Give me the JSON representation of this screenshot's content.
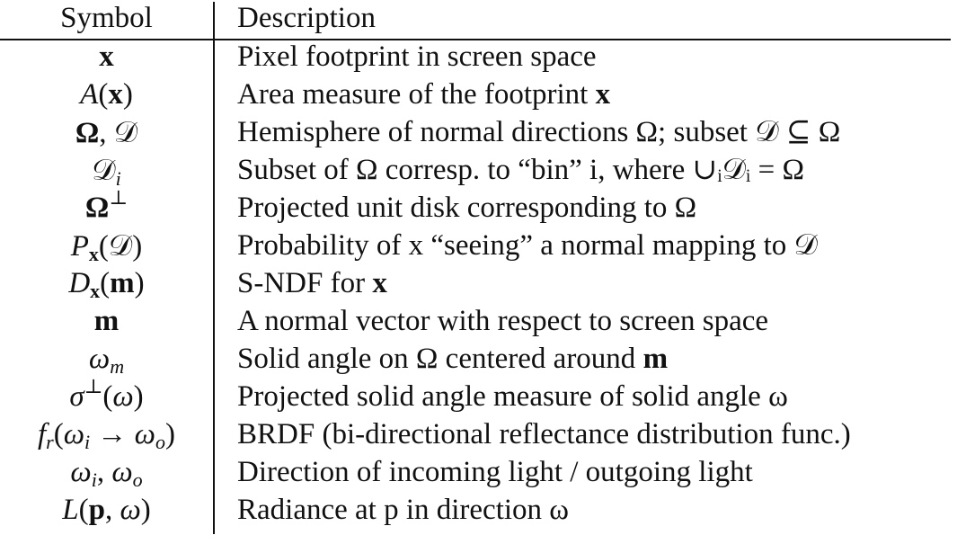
{
  "header": {
    "symbol": "Symbol",
    "description": "Description"
  },
  "rows": [
    {
      "desc": "Pixel footprint in screen space"
    },
    {
      "desc_pre": "Area measure of the footprint ",
      "desc_bold": "x"
    },
    {
      "desc": "Hemisphere of normal directions Ω; subset 𝒟 ⊆ Ω"
    },
    {
      "desc": "Subset of Ω corresp. to “bin” i, where ∪ᵢ𝒟ᵢ = Ω"
    },
    {
      "desc": "Projected unit disk corresponding to Ω"
    },
    {
      "desc": "Probability of x “seeing” a normal mapping to 𝒟"
    },
    {
      "desc_pre": "S-NDF for ",
      "desc_bold": "x"
    },
    {
      "desc": "A normal vector with respect to screen space"
    },
    {
      "desc_pre": "Solid angle on Ω centered around ",
      "desc_bold": "m"
    },
    {
      "desc": "Projected solid angle measure of solid angle ω"
    },
    {
      "desc": "BRDF (bi-directional reflectance distribution func.)"
    },
    {
      "desc": "Direction of incoming light / outgoing light"
    },
    {
      "desc": "Radiance at p in direction ω"
    }
  ]
}
